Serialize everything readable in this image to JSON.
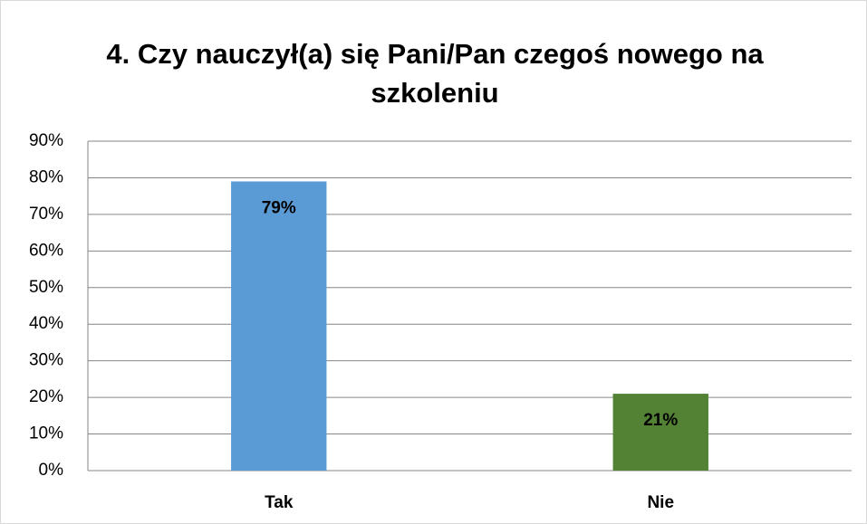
{
  "chart_data": {
    "type": "bar",
    "title": "4. Czy nauczył(a) się Pani/Pan czegoś nowego na szkoleniu",
    "categories": [
      "Tak",
      "Nie"
    ],
    "values": [
      79,
      21
    ],
    "value_labels": [
      "79%",
      "21%"
    ],
    "colors": [
      "#5b9bd5",
      "#548235"
    ],
    "ylim": [
      0,
      90
    ],
    "yticks": [
      {
        "value": 0,
        "label": "0%"
      },
      {
        "value": 10,
        "label": "10%"
      },
      {
        "value": 20,
        "label": "20%"
      },
      {
        "value": 30,
        "label": "30%"
      },
      {
        "value": 40,
        "label": "40%"
      },
      {
        "value": 50,
        "label": "50%"
      },
      {
        "value": 60,
        "label": "60%"
      },
      {
        "value": 70,
        "label": "70%"
      },
      {
        "value": 80,
        "label": "80%"
      },
      {
        "value": 90,
        "label": "90%"
      }
    ],
    "grid": true
  }
}
